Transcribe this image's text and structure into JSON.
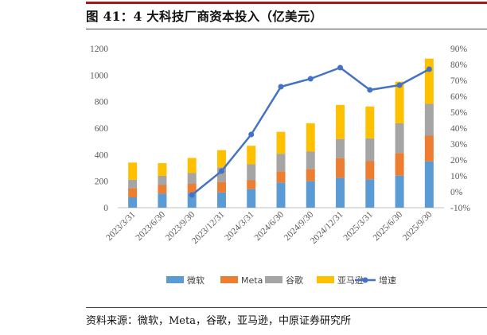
{
  "figure": {
    "title": "图 41：4 大科技厂商资本投入（亿美元）",
    "source": "资料来源：微软，Meta，谷歌，亚马逊，中原证券研究所"
  },
  "chart_data": {
    "type": "bar",
    "stacked": true,
    "title": "4 大科技厂商资本投入（亿美元）",
    "categories": [
      "2023/3/31",
      "2023/6/30",
      "2023/9/30",
      "2023/12/31",
      "2024/3/31",
      "2024/6/30",
      "2024/9/30",
      "2024/12/31",
      "2025/3/31",
      "2025/6/30",
      "2025/9/30"
    ],
    "series": [
      {
        "name": "微软",
        "color": "#5b9bd5",
        "values": [
          78,
          107,
          112,
          115,
          140,
          190,
          200,
          226,
          214,
          242,
          349
        ]
      },
      {
        "name": "Meta",
        "color": "#ed7d31",
        "values": [
          70,
          64,
          68,
          79,
          67,
          85,
          92,
          148,
          137,
          170,
          194
        ]
      },
      {
        "name": "谷歌",
        "color": "#a5a5a5",
        "values": [
          63,
          69,
          81,
          110,
          120,
          132,
          131,
          144,
          172,
          224,
          240
        ]
      },
      {
        "name": "亚马逊",
        "color": "#ffc000",
        "values": [
          129,
          96,
          114,
          130,
          140,
          165,
          214,
          257,
          240,
          314,
          341
        ]
      }
    ],
    "line_series": {
      "name": "增速",
      "color": "#4472c4",
      "axis": "right",
      "values": [
        null,
        null,
        -2,
        13,
        36,
        66,
        71,
        78,
        64,
        67,
        77
      ]
    },
    "y_left": {
      "min": 0,
      "max": 1200,
      "step": 200,
      "ticks": [
        "0",
        "200",
        "400",
        "600",
        "800",
        "1000",
        "1200"
      ]
    },
    "y_right": {
      "min": -10,
      "max": 90,
      "step": 10,
      "ticks": [
        "-10%",
        "0%",
        "10%",
        "20%",
        "30%",
        "40%",
        "50%",
        "60%",
        "70%",
        "80%",
        "90%"
      ]
    },
    "legend": {
      "position": "bottom",
      "items": [
        "微软",
        "Meta",
        "谷歌",
        "亚马逊",
        "增速"
      ]
    }
  }
}
